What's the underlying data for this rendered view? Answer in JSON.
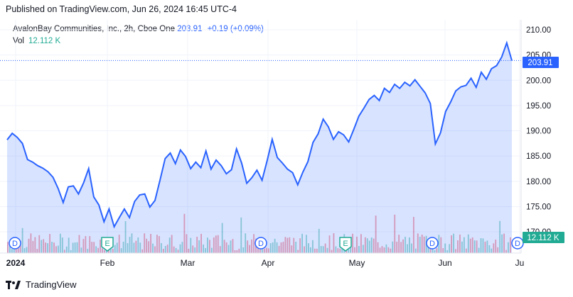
{
  "header": {
    "published": "Published on TradingView.com, Jun 26, 2024 16:45 UTC-4"
  },
  "legend": {
    "symbol": "AvalonBay Communities, Inc., 2h, Cboe One",
    "price": "203.91",
    "change": "+0.19 (+0.09%)"
  },
  "volume": {
    "label": "Vol",
    "value": "12.112 K"
  },
  "footer": {
    "brand": "TradingView"
  },
  "colors": {
    "line": "#2962ff",
    "vol_up": "#22ab94",
    "vol_down": "#f23645"
  },
  "chart_data": {
    "type": "area",
    "ylim": [
      170,
      211
    ],
    "yticks": [
      170,
      175,
      180,
      185,
      190,
      195,
      200,
      205,
      210
    ],
    "ytick_labels": [
      "170.00",
      "175.00",
      "180.00",
      "185.00",
      "190.00",
      "195.00",
      "200.00",
      "205.00",
      "210.00"
    ],
    "xtick_labels": [
      "2024",
      "Feb",
      "Mar",
      "Apr",
      "May",
      "Jun",
      "Ju"
    ],
    "last_price": 203.91,
    "last_price_label": "203.91",
    "volume_label": "12.112 K",
    "events": [
      "D",
      "E",
      "D",
      "D",
      "E",
      "D",
      "D"
    ],
    "series": [
      {
        "x": [
          0,
          1,
          2,
          3,
          4,
          5,
          6,
          7,
          8,
          9,
          10,
          11,
          12,
          13,
          14,
          15,
          16,
          17,
          18,
          19,
          20,
          21,
          22,
          23,
          24,
          25,
          26,
          27,
          28,
          29,
          30,
          31,
          32,
          33,
          34,
          35,
          36,
          37,
          38,
          39,
          40,
          41,
          42,
          43,
          44,
          45,
          46,
          47,
          48,
          49,
          50,
          51,
          52,
          53,
          54,
          55,
          56,
          57,
          58,
          59,
          60,
          61,
          62,
          63,
          64,
          65,
          66,
          67,
          68,
          69,
          70,
          71,
          72,
          73,
          74,
          75,
          76,
          77,
          78,
          79,
          80,
          81,
          82,
          83,
          84,
          85,
          86,
          87,
          88,
          89,
          90,
          91,
          92,
          93,
          94,
          95,
          96,
          97,
          98,
          99
        ],
        "values": [
          188.2,
          189.5,
          188.7,
          187.5,
          184.3,
          183.8,
          183.1,
          182.6,
          181.9,
          180.8,
          178.6,
          175.8,
          178.9,
          179.1,
          177.5,
          179.7,
          182.5,
          176.9,
          175.3,
          172.0,
          174.5,
          171.0,
          172.8,
          174.5,
          172.8,
          176.0,
          177.3,
          177.5,
          174.9,
          176.2,
          180.3,
          184.5,
          185.6,
          183.5,
          186.2,
          184.9,
          182.5,
          183.8,
          182.7,
          186.0,
          182.4,
          184.2,
          183.1,
          181.5,
          182.3,
          186.4,
          183.6,
          179.6,
          180.7,
          182.2,
          180.2,
          184.1,
          188.3,
          184.7,
          183.6,
          182.4,
          181.7,
          179.3,
          181.8,
          183.9,
          187.7,
          189.4,
          192.3,
          190.8,
          188.3,
          189.8,
          189.2,
          187.8,
          190.3,
          192.9,
          194.5,
          196.2,
          197.0,
          196.0,
          198.4,
          197.6,
          199.2,
          198.4,
          199.6,
          198.9,
          200.1,
          198.8,
          197.5,
          195.4,
          187.4,
          189.6,
          193.8,
          195.7,
          197.9,
          198.7,
          199.0,
          200.4,
          198.6,
          201.6,
          200.2,
          202.3,
          202.9,
          204.6,
          207.4,
          203.9
        ]
      }
    ]
  }
}
